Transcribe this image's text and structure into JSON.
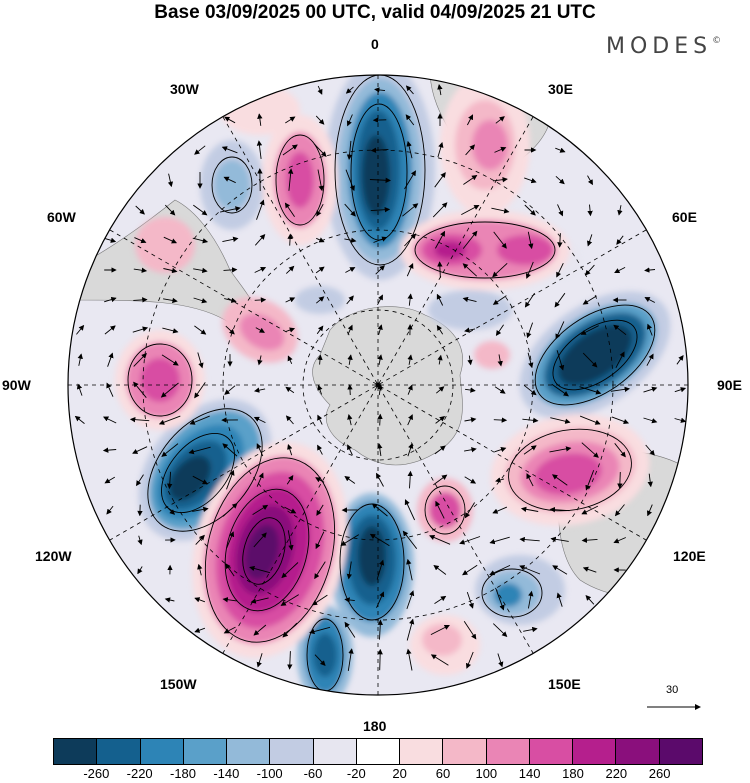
{
  "title": "Base 03/09/2025 00 UTC, valid 04/09/2025 21 UTC",
  "brand": {
    "name": "MODES",
    "mark": "©"
  },
  "longitude_labels": {
    "top": "0",
    "bottom": "180",
    "left": "90W",
    "right": "90E",
    "w30": "30W",
    "e30": "30E",
    "w60": "60W",
    "e60": "60E",
    "w120": "120W",
    "e120": "120E",
    "w150": "150W",
    "e150": "150E"
  },
  "vector_scale": {
    "label": "30"
  },
  "colorbar": {
    "colors": [
      "#0d3b5a",
      "#14608e",
      "#2d84b6",
      "#5aa0c9",
      "#93bad9",
      "#c2cce3",
      "#e7e6f0",
      "#ffffff",
      "#f9dde0",
      "#f4b8c8",
      "#ea85b5",
      "#d84ea3",
      "#b51f8d",
      "#8a0f7c",
      "#5b0a6b"
    ],
    "ticks": [
      "-260",
      "-220",
      "-180",
      "-140",
      "-100",
      "-60",
      "-20",
      "20",
      "60",
      "100",
      "140",
      "180",
      "220",
      "260"
    ]
  },
  "map_colors": {
    "land": "#d9d9d9",
    "background": "#e9e8f2"
  }
}
